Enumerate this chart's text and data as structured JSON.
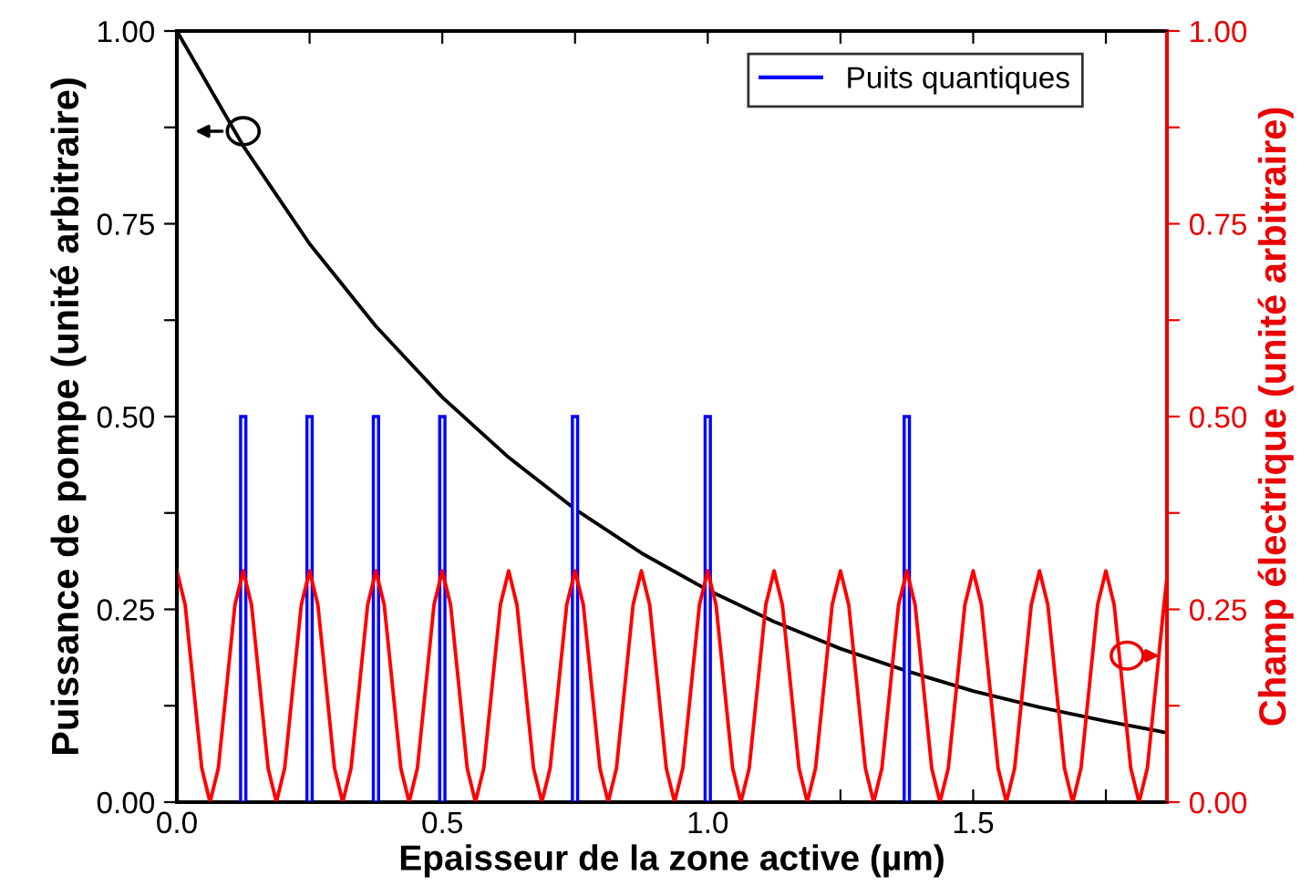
{
  "chart_data": {
    "type": "line",
    "xlabel": "Epaisseur de la zone active (µm)",
    "ylabel": "Puissance de pompe (unité arbitraire)",
    "y2label": "Champ électrique (unité arbitraire)",
    "xlim": [
      0,
      1.865
    ],
    "xticks": [
      {
        "value": 0,
        "label": "0.0"
      },
      {
        "value": 0.25,
        "label": null
      },
      {
        "value": 0.5,
        "label": "0.5"
      },
      {
        "value": 0.75,
        "label": null
      },
      {
        "value": 1.0,
        "label": "1.0"
      },
      {
        "value": 1.25,
        "label": null
      },
      {
        "value": 1.5,
        "label": "1.5"
      },
      {
        "value": 1.75,
        "label": null
      }
    ],
    "ylim": [
      0,
      1
    ],
    "yticks": [
      {
        "value": 0,
        "label": "0.00"
      },
      {
        "value": 0.125,
        "label": null
      },
      {
        "value": 0.25,
        "label": "0.25"
      },
      {
        "value": 0.375,
        "label": null
      },
      {
        "value": 0.5,
        "label": "0.50"
      },
      {
        "value": 0.625,
        "label": null
      },
      {
        "value": 0.75,
        "label": "0.75"
      },
      {
        "value": 0.875,
        "label": null
      },
      {
        "value": 1,
        "label": "1.00"
      }
    ],
    "y2lim": [
      0,
      1
    ],
    "y2ticks": [
      {
        "value": 0,
        "label": "0.00"
      },
      {
        "value": 0.125,
        "label": null
      },
      {
        "value": 0.25,
        "label": "0.25"
      },
      {
        "value": 0.375,
        "label": null
      },
      {
        "value": 0.5,
        "label": "0.50"
      },
      {
        "value": 0.625,
        "label": null
      },
      {
        "value": 0.75,
        "label": "0.75"
      },
      {
        "value": 0.875,
        "label": null
      },
      {
        "value": 1,
        "label": "1.00"
      }
    ],
    "grid": false,
    "legend": "top right",
    "series": [
      {
        "type": "bar",
        "name": "Puits quantiques",
        "color": "#0000ff",
        "x": [
          0.125,
          0.25,
          0.375,
          0.5,
          0.75,
          1.0,
          1.375
        ],
        "values": [
          0.5,
          0.5,
          0.5,
          0.5,
          0.5,
          0.5,
          0.5
        ]
      },
      {
        "color": "#000000",
        "x": [
          0,
          0.125,
          0.25,
          0.375,
          0.5,
          0.625,
          0.75,
          0.875,
          1.0,
          1.125,
          1.25,
          1.375,
          1.5,
          1.625,
          1.75,
          1.865
        ],
        "values": [
          1.0,
          0.851,
          0.724,
          0.617,
          0.525,
          0.447,
          0.38,
          0.323,
          0.275,
          0.234,
          0.199,
          0.17,
          0.144,
          0.123,
          0.105,
          0.09
        ]
      },
      {
        "axis": "y2",
        "color": "#ff0000",
        "x": [
          0,
          0.0156,
          0.0313,
          0.0469,
          0.0625,
          0.0781,
          0.0938,
          0.1094,
          0.125,
          0.1406,
          0.1563,
          0.1719,
          0.1875,
          0.2031,
          0.2188,
          0.2344,
          0.25,
          0.2656,
          0.2813,
          0.2969,
          0.3125,
          0.3281,
          0.3438,
          0.3594,
          0.375,
          0.3906,
          0.4063,
          0.4219,
          0.4375,
          0.4531,
          0.4688,
          0.4844,
          0.5,
          0.5156,
          0.5313,
          0.5469,
          0.5625,
          0.5781,
          0.5938,
          0.6094,
          0.625,
          0.6406,
          0.6563,
          0.6719,
          0.6875,
          0.7031,
          0.7188,
          0.7344,
          0.75,
          0.7656,
          0.7813,
          0.7969,
          0.8125,
          0.8281,
          0.8438,
          0.8594,
          0.875,
          0.8906,
          0.9063,
          0.9219,
          0.9375,
          0.9531,
          0.9688,
          0.9844,
          1.0,
          1.0156,
          1.0313,
          1.0469,
          1.0625,
          1.0781,
          1.0938,
          1.1094,
          1.125,
          1.1406,
          1.1563,
          1.1719,
          1.1875,
          1.2031,
          1.2188,
          1.2344,
          1.25,
          1.2656,
          1.2813,
          1.2969,
          1.3125,
          1.3281,
          1.3438,
          1.3594,
          1.375,
          1.3906,
          1.4063,
          1.4219,
          1.4375,
          1.4531,
          1.4688,
          1.4844,
          1.5,
          1.5156,
          1.5313,
          1.5469,
          1.5625,
          1.5781,
          1.5938,
          1.6094,
          1.625,
          1.6406,
          1.6563,
          1.6719,
          1.6875,
          1.7031,
          1.7188,
          1.7344,
          1.75,
          1.7656,
          1.7813,
          1.7969,
          1.8125,
          1.8281,
          1.8438,
          1.8594,
          1.865
        ],
        "values": [
          0.3,
          0.256,
          0.15,
          0.044,
          0,
          0.044,
          0.15,
          0.256,
          0.3,
          0.256,
          0.15,
          0.044,
          0,
          0.044,
          0.15,
          0.256,
          0.3,
          0.256,
          0.15,
          0.044,
          0,
          0.044,
          0.15,
          0.256,
          0.3,
          0.256,
          0.15,
          0.044,
          0,
          0.044,
          0.15,
          0.256,
          0.3,
          0.256,
          0.15,
          0.044,
          0,
          0.044,
          0.15,
          0.256,
          0.3,
          0.256,
          0.15,
          0.044,
          0,
          0.044,
          0.15,
          0.256,
          0.3,
          0.256,
          0.15,
          0.044,
          0,
          0.044,
          0.15,
          0.256,
          0.3,
          0.256,
          0.15,
          0.044,
          0,
          0.044,
          0.15,
          0.256,
          0.3,
          0.256,
          0.15,
          0.044,
          0,
          0.044,
          0.15,
          0.256,
          0.3,
          0.256,
          0.15,
          0.044,
          0,
          0.044,
          0.15,
          0.256,
          0.3,
          0.256,
          0.15,
          0.044,
          0,
          0.044,
          0.15,
          0.256,
          0.3,
          0.256,
          0.15,
          0.044,
          0,
          0.044,
          0.15,
          0.256,
          0.3,
          0.256,
          0.15,
          0.044,
          0,
          0.044,
          0.15,
          0.256,
          0.3,
          0.256,
          0.15,
          0.044,
          0,
          0.044,
          0.15,
          0.256,
          0.3,
          0.256,
          0.15,
          0.044,
          0,
          0.044,
          0.15,
          0.256,
          0.29
        ]
      }
    ]
  }
}
